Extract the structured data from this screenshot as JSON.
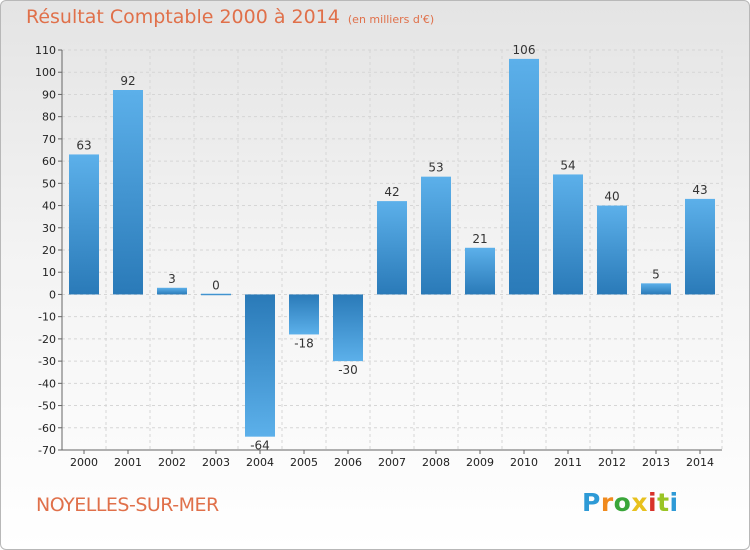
{
  "header": {
    "title": "Résultat Comptable 2000 à 2014",
    "subtitle": "(en milliers d'€)"
  },
  "footer": {
    "place": "NOYELLES-SUR-MER",
    "brand_letters": [
      "P",
      "r",
      "o",
      "x",
      "i",
      "t",
      "i"
    ]
  },
  "colors": {
    "bar_light": "#5aaee8",
    "bar_dark": "#2878b8",
    "grid": "#d6d6d6",
    "axis": "#666666",
    "title": "#e0704a"
  },
  "chart_data": {
    "type": "bar",
    "title": "Résultat Comptable 2000 à 2014",
    "subtitle": "(en milliers d'€)",
    "categories": [
      "2000",
      "2001",
      "2002",
      "2003",
      "2004",
      "2005",
      "2006",
      "2007",
      "2008",
      "2009",
      "2010",
      "2011",
      "2012",
      "2013",
      "2014"
    ],
    "values": [
      63,
      92,
      3,
      0,
      -64,
      -18,
      -30,
      42,
      53,
      21,
      106,
      54,
      40,
      5,
      43
    ],
    "data_labels": [
      "63",
      "92",
      "3",
      "0",
      "-64",
      "-18",
      "-30",
      "42",
      "53",
      "21",
      "106",
      "54",
      "40",
      "5",
      "43"
    ],
    "yticks": [
      110,
      100,
      90,
      80,
      70,
      60,
      50,
      40,
      30,
      20,
      10,
      0,
      -10,
      -20,
      -30,
      -40,
      -50,
      -60,
      -70
    ],
    "ylim": [
      -70,
      110
    ],
    "xlabel": "",
    "ylabel": "",
    "grid": true,
    "legend": "none"
  }
}
